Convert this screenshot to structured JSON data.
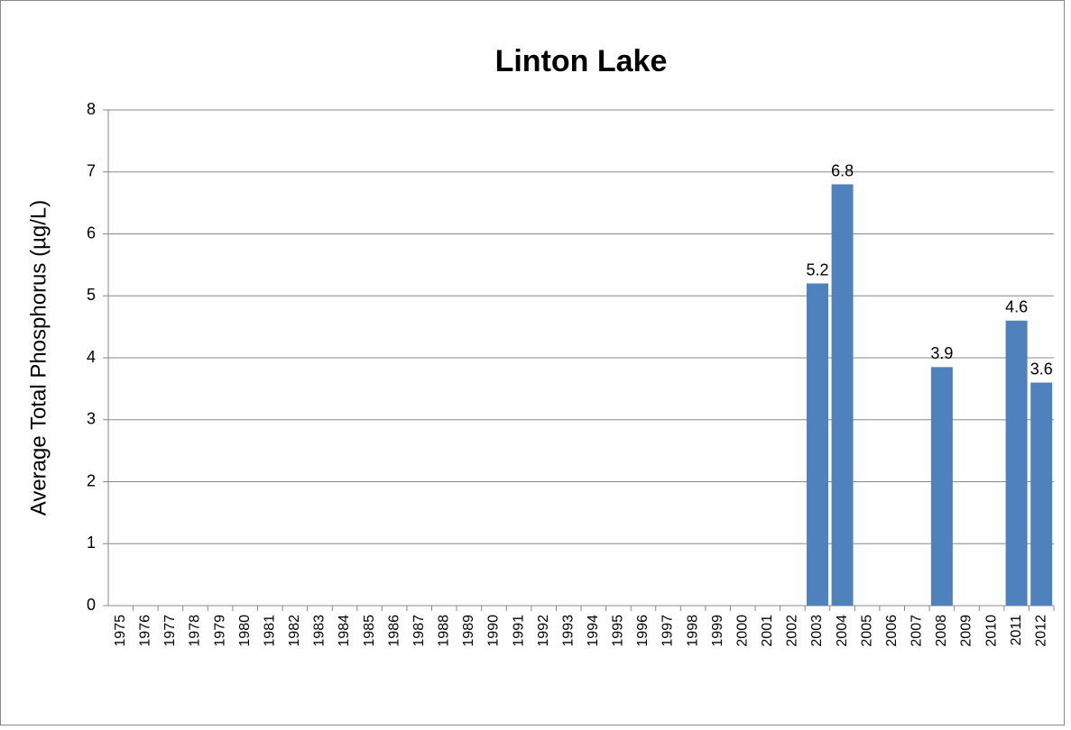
{
  "chart_data": {
    "type": "bar",
    "title": "Linton Lake",
    "y_label": "Average Total Phosphorus (µg/L)",
    "categories": [
      "1975",
      "1976",
      "1977",
      "1978",
      "1979",
      "1980",
      "1981",
      "1982",
      "1983",
      "1984",
      "1985",
      "1986",
      "1987",
      "1988",
      "1989",
      "1990",
      "1991",
      "1992",
      "1993",
      "1994",
      "1995",
      "1996",
      "1997",
      "1998",
      "1999",
      "2000",
      "2001",
      "2002",
      "2003",
      "2004",
      "2005",
      "2006",
      "2007",
      "2008",
      "2009",
      "2010",
      "2011",
      "2012"
    ],
    "values": [
      null,
      null,
      null,
      null,
      null,
      null,
      null,
      null,
      null,
      null,
      null,
      null,
      null,
      null,
      null,
      null,
      null,
      null,
      null,
      null,
      null,
      null,
      null,
      null,
      null,
      null,
      null,
      null,
      5.2,
      6.8,
      null,
      null,
      null,
      3.85,
      null,
      null,
      4.6,
      3.6
    ],
    "value_labels": [
      null,
      null,
      null,
      null,
      null,
      null,
      null,
      null,
      null,
      null,
      null,
      null,
      null,
      null,
      null,
      null,
      null,
      null,
      null,
      null,
      null,
      null,
      null,
      null,
      null,
      null,
      null,
      null,
      "5.2",
      "6.8",
      null,
      null,
      null,
      "3.9",
      null,
      null,
      "4.6",
      "3.6"
    ],
    "color": "#4f81bd",
    "ylim": [
      0,
      8
    ],
    "yticks": [
      0,
      1,
      2,
      3,
      4,
      5,
      6,
      7,
      8
    ],
    "grid": true
  }
}
